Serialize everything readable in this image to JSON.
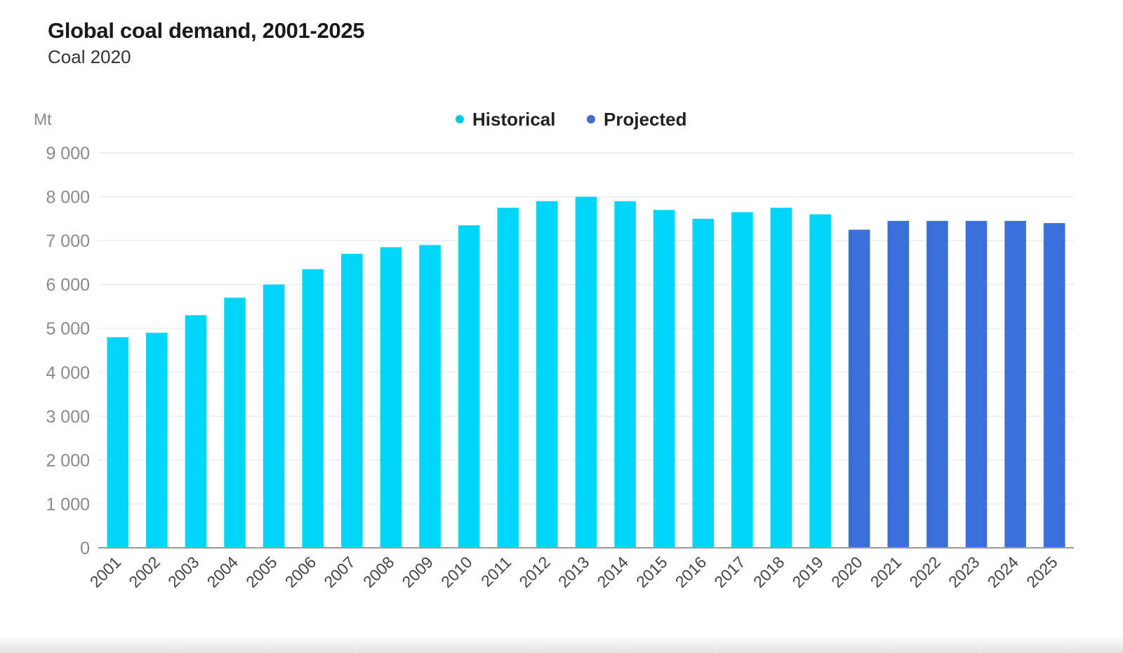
{
  "chart_data": {
    "type": "bar",
    "title": "Global coal demand, 2001-2025",
    "subtitle": "Coal 2020",
    "ylabel": "Mt",
    "xlabel": "",
    "ylim": [
      0,
      9000
    ],
    "yticks": [
      0,
      1000,
      2000,
      3000,
      4000,
      5000,
      6000,
      7000,
      8000,
      9000
    ],
    "ytick_labels": [
      "0",
      "1 000",
      "2 000",
      "3 000",
      "4 000",
      "5 000",
      "6 000",
      "7 000",
      "8 000",
      "9 000"
    ],
    "grid": true,
    "legend_position": "top-center",
    "categories": [
      "2001",
      "2002",
      "2003",
      "2004",
      "2005",
      "2006",
      "2007",
      "2008",
      "2009",
      "2010",
      "2011",
      "2012",
      "2013",
      "2014",
      "2015",
      "2016",
      "2017",
      "2018",
      "2019",
      "2020",
      "2021",
      "2022",
      "2023",
      "2024",
      "2025"
    ],
    "series": [
      {
        "name": "Historical",
        "color": "#00d4f7",
        "values": [
          4800,
          4900,
          5300,
          5700,
          6000,
          6350,
          6700,
          6850,
          6900,
          7350,
          7750,
          7900,
          8000,
          7900,
          7700,
          7500,
          7650,
          7750,
          7600,
          null,
          null,
          null,
          null,
          null,
          null
        ]
      },
      {
        "name": "Projected",
        "color": "#3b6fd9",
        "values": [
          null,
          null,
          null,
          null,
          null,
          null,
          null,
          null,
          null,
          null,
          null,
          null,
          null,
          null,
          null,
          null,
          null,
          null,
          null,
          7250,
          7450,
          7450,
          7450,
          7450,
          7400
        ]
      }
    ],
    "colors": {
      "grid": "#ececec",
      "axis": "#9a9a9a",
      "legend_historical_dot": "#00c8ea",
      "legend_projected_dot": "#4a67cf"
    }
  }
}
